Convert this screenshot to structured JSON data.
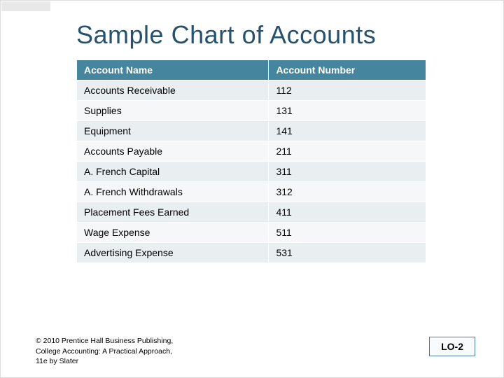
{
  "title": "Sample Chart of Accounts",
  "table": {
    "type": "table",
    "header_bg": "#46859e",
    "header_fg": "#ffffff",
    "row_bg_alt": [
      "#e9eef0",
      "#f5f7f8"
    ],
    "border_color": "#ffffff",
    "cell_fontsize": 14,
    "col_widths": [
      "55%",
      "45%"
    ],
    "columns": [
      "Account Name",
      "Account Number"
    ],
    "rows": [
      [
        "Accounts Receivable",
        "112"
      ],
      [
        "Supplies",
        "131"
      ],
      [
        "Equipment",
        "141"
      ],
      [
        "Accounts Payable",
        "211"
      ],
      [
        "A.  French Capital",
        "311"
      ],
      [
        "A.  French Withdrawals",
        "312"
      ],
      [
        "Placement Fees Earned",
        "411"
      ],
      [
        "Wage Expense",
        "511"
      ],
      [
        "Advertising  Expense",
        "531"
      ]
    ]
  },
  "footer": {
    "line1": "© 2010 Prentice Hall Business Publishing,",
    "line2": "College Accounting: A Practical Approach,",
    "line3": "11e by Slater"
  },
  "lo_badge": "LO-2",
  "colors": {
    "title_color": "#26526e",
    "slide_bg": "#ffffff",
    "badge_border": "#4a7d99",
    "badge_bg": "#f7fbfd"
  }
}
